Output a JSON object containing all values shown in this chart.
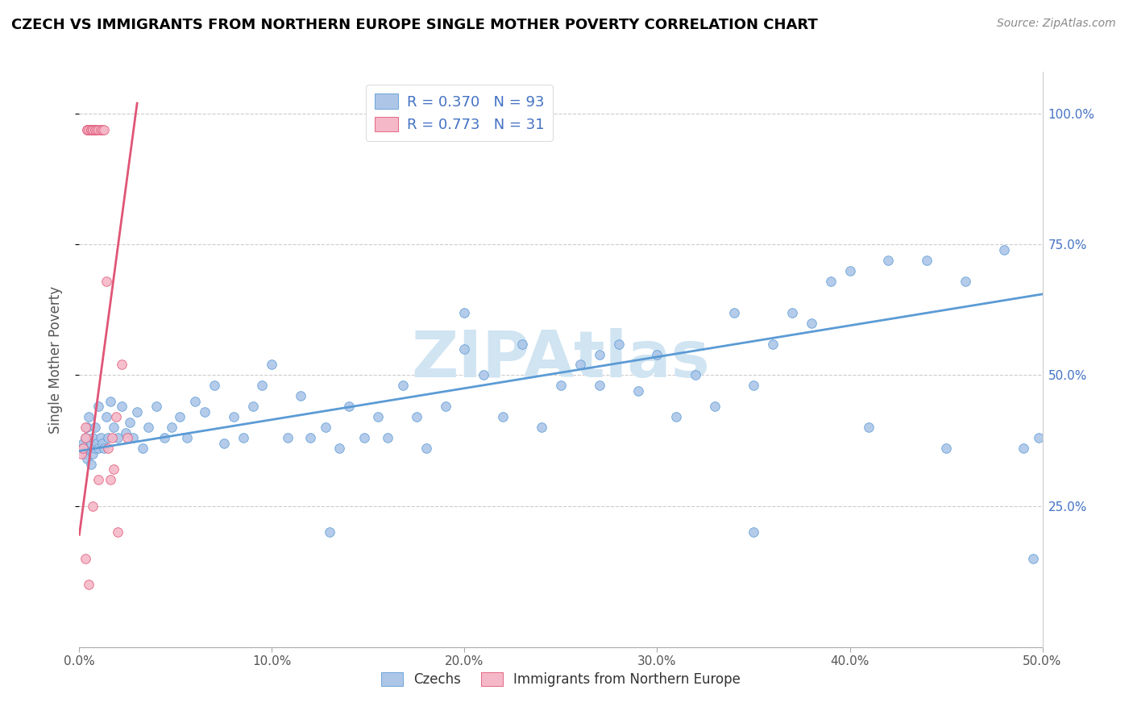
{
  "title": "CZECH VS IMMIGRANTS FROM NORTHERN EUROPE SINGLE MOTHER POVERTY CORRELATION CHART",
  "source_text": "Source: ZipAtlas.com",
  "ylabel": "Single Mother Poverty",
  "xlim": [
    0.0,
    0.5
  ],
  "ylim": [
    -0.02,
    1.08
  ],
  "xtick_labels": [
    "0.0%",
    "10.0%",
    "20.0%",
    "30.0%",
    "40.0%",
    "50.0%"
  ],
  "xtick_vals": [
    0.0,
    0.1,
    0.2,
    0.3,
    0.4,
    0.5
  ],
  "ytick_labels": [
    "25.0%",
    "50.0%",
    "75.0%",
    "100.0%"
  ],
  "ytick_vals": [
    0.25,
    0.5,
    0.75,
    1.0
  ],
  "blue_dot_color": "#adc6e8",
  "blue_edge_color": "#5b9bd5",
  "pink_dot_color": "#f5b8c8",
  "pink_edge_color": "#e05575",
  "blue_line_color": "#5b9bd5",
  "pink_line_color": "#e05575",
  "legend_r1": "R = 0.370",
  "legend_n1": "N = 93",
  "legend_r2": "R = 0.773",
  "legend_n2": "N = 31",
  "legend_text_color": "#4472c4",
  "watermark": "ZIPAtlas",
  "watermark_color": "#d0e4f2",
  "czechs_label": "Czechs",
  "immigrants_label": "Immigrants from Northern Europe",
  "czechs_x": [
    0.001,
    0.002,
    0.003,
    0.003,
    0.004,
    0.004,
    0.005,
    0.005,
    0.006,
    0.006,
    0.007,
    0.007,
    0.008,
    0.008,
    0.009,
    0.01,
    0.01,
    0.011,
    0.012,
    0.013,
    0.014,
    0.015,
    0.016,
    0.018,
    0.02,
    0.022,
    0.024,
    0.026,
    0.028,
    0.03,
    0.033,
    0.036,
    0.04,
    0.044,
    0.048,
    0.052,
    0.056,
    0.06,
    0.065,
    0.07,
    0.075,
    0.08,
    0.085,
    0.09,
    0.095,
    0.1,
    0.108,
    0.115,
    0.12,
    0.128,
    0.135,
    0.14,
    0.148,
    0.155,
    0.16,
    0.168,
    0.175,
    0.18,
    0.19,
    0.2,
    0.21,
    0.22,
    0.23,
    0.24,
    0.25,
    0.26,
    0.27,
    0.28,
    0.29,
    0.3,
    0.31,
    0.32,
    0.33,
    0.34,
    0.35,
    0.36,
    0.37,
    0.38,
    0.39,
    0.4,
    0.42,
    0.44,
    0.46,
    0.48,
    0.49,
    0.495,
    0.498,
    0.2,
    0.13,
    0.27,
    0.35,
    0.41,
    0.45
  ],
  "czechs_y": [
    0.36,
    0.37,
    0.35,
    0.38,
    0.34,
    0.4,
    0.36,
    0.42,
    0.37,
    0.33,
    0.38,
    0.35,
    0.36,
    0.4,
    0.37,
    0.36,
    0.44,
    0.38,
    0.37,
    0.36,
    0.42,
    0.38,
    0.45,
    0.4,
    0.38,
    0.44,
    0.39,
    0.41,
    0.38,
    0.43,
    0.36,
    0.4,
    0.44,
    0.38,
    0.4,
    0.42,
    0.38,
    0.45,
    0.43,
    0.48,
    0.37,
    0.42,
    0.38,
    0.44,
    0.48,
    0.52,
    0.38,
    0.46,
    0.38,
    0.4,
    0.36,
    0.44,
    0.38,
    0.42,
    0.38,
    0.48,
    0.42,
    0.36,
    0.44,
    0.55,
    0.5,
    0.42,
    0.56,
    0.4,
    0.48,
    0.52,
    0.48,
    0.56,
    0.47,
    0.54,
    0.42,
    0.5,
    0.44,
    0.62,
    0.48,
    0.56,
    0.62,
    0.6,
    0.68,
    0.7,
    0.72,
    0.72,
    0.68,
    0.74,
    0.36,
    0.15,
    0.38,
    0.62,
    0.2,
    0.54,
    0.2,
    0.4,
    0.36
  ],
  "immigrants_x": [
    0.001,
    0.002,
    0.003,
    0.003,
    0.004,
    0.004,
    0.005,
    0.006,
    0.006,
    0.007,
    0.007,
    0.008,
    0.008,
    0.009,
    0.01,
    0.011,
    0.012,
    0.013,
    0.014,
    0.015,
    0.016,
    0.017,
    0.018,
    0.019,
    0.02,
    0.022,
    0.025,
    0.003,
    0.005,
    0.007,
    0.01
  ],
  "immigrants_y": [
    0.35,
    0.36,
    0.38,
    0.4,
    0.97,
    0.97,
    0.97,
    0.97,
    0.97,
    0.97,
    0.97,
    0.97,
    0.97,
    0.97,
    0.97,
    0.97,
    0.97,
    0.97,
    0.68,
    0.36,
    0.3,
    0.38,
    0.32,
    0.42,
    0.2,
    0.52,
    0.38,
    0.15,
    0.1,
    0.25,
    0.3
  ],
  "blue_line_x": [
    0.0,
    0.5
  ],
  "blue_line_y": [
    0.355,
    0.655
  ],
  "pink_line_x": [
    0.0,
    0.03
  ],
  "pink_line_y": [
    0.195,
    1.02
  ]
}
